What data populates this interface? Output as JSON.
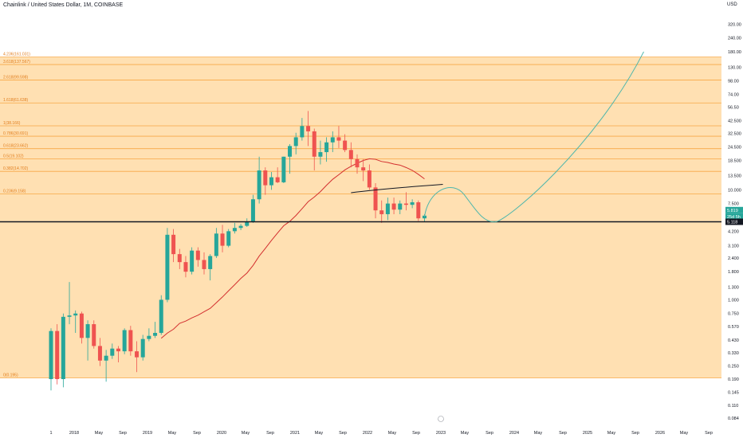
{
  "header": {
    "title": "Chainlink / United States Dollar, 1M, COINBASE",
    "currency": "USD"
  },
  "colors": {
    "fib_zone": "#ffe0b2",
    "fib_line": "#f7a745",
    "fib_label": "#e07b1a",
    "up_candle": "#26a69a",
    "down_candle": "#ef5350",
    "ma_line": "#d32f2f",
    "trend_line": "#131722",
    "projection": "#4db6ac",
    "support": "#131722"
  },
  "price_tags": [
    {
      "label": "5.819",
      "bg": "#26a69a"
    },
    {
      "label": "25d 5h",
      "bg": "#26a69a"
    },
    {
      "label": "5.118",
      "bg": "#131722"
    }
  ],
  "chart_data": {
    "type": "candlestick",
    "log_scale": true,
    "ylim": [
      0.084,
      450
    ],
    "y_ticks": [
      "320.00",
      "240.00",
      "180.00",
      "130.00",
      "98.00",
      "74.00",
      "56.50",
      "42.500",
      "32.500",
      "24.500",
      "18.500",
      "13.500",
      "10.000",
      "7.500",
      "5.600",
      "4.200",
      "3.100",
      "2.400",
      "1.800",
      "1.300",
      "1.000",
      "0.750",
      "0.570",
      "0.430",
      "0.330",
      "0.250",
      "0.190",
      "0.145",
      "0.110",
      "0.084"
    ],
    "x_ticks": [
      "1",
      "2018",
      "May",
      "Sep",
      "2019",
      "May",
      "Sep",
      "2020",
      "May",
      "Sep",
      "2021",
      "May",
      "Sep",
      "2022",
      "May",
      "Sep",
      "2023",
      "May",
      "Sep",
      "2024",
      "May",
      "Sep",
      "2025",
      "May",
      "Sep",
      "2026",
      "May",
      "Sep"
    ],
    "fib_levels": [
      {
        "label": "0(0.195)",
        "value": 0.195
      },
      {
        "label": "0.236(9.158)",
        "value": 9.158
      },
      {
        "label": "0.382(14.702)",
        "value": 14.702
      },
      {
        "label": "0.5(19.102)",
        "value": 19.102
      },
      {
        "label": "0.618(23.662)",
        "value": 23.662
      },
      {
        "label": "0.786(30.691)",
        "value": 30.691
      },
      {
        "label": "1(38.166)",
        "value": 38.166
      },
      {
        "label": "1.618(61.638)",
        "value": 61.638
      },
      {
        "label": "2.618(99.598)",
        "value": 99.598
      },
      {
        "label": "3.618(137.567)",
        "value": 137.567
      },
      {
        "label": "4.236(161.031)",
        "value": 161.031
      }
    ],
    "support_level": 5.118,
    "candles": [
      {
        "o": 0.19,
        "h": 0.55,
        "l": 0.15,
        "c": 0.52
      },
      {
        "o": 0.52,
        "h": 0.6,
        "l": 0.17,
        "c": 0.19
      },
      {
        "o": 0.19,
        "h": 0.75,
        "l": 0.16,
        "c": 0.7
      },
      {
        "o": 0.7,
        "h": 1.45,
        "l": 0.6,
        "c": 0.72
      },
      {
        "o": 0.72,
        "h": 0.8,
        "l": 0.5,
        "c": 0.75
      },
      {
        "o": 0.75,
        "h": 0.78,
        "l": 0.4,
        "c": 0.45
      },
      {
        "o": 0.45,
        "h": 0.65,
        "l": 0.28,
        "c": 0.6
      },
      {
        "o": 0.6,
        "h": 0.65,
        "l": 0.36,
        "c": 0.38
      },
      {
        "o": 0.38,
        "h": 0.45,
        "l": 0.25,
        "c": 0.28
      },
      {
        "o": 0.28,
        "h": 0.35,
        "l": 0.18,
        "c": 0.31
      },
      {
        "o": 0.31,
        "h": 0.4,
        "l": 0.29,
        "c": 0.36
      },
      {
        "o": 0.36,
        "h": 0.38,
        "l": 0.27,
        "c": 0.34
      },
      {
        "o": 0.34,
        "h": 0.55,
        "l": 0.32,
        "c": 0.53
      },
      {
        "o": 0.53,
        "h": 0.58,
        "l": 0.31,
        "c": 0.34
      },
      {
        "o": 0.34,
        "h": 0.42,
        "l": 0.22,
        "c": 0.3
      },
      {
        "o": 0.3,
        "h": 0.48,
        "l": 0.28,
        "c": 0.44
      },
      {
        "o": 0.44,
        "h": 0.55,
        "l": 0.42,
        "c": 0.47
      },
      {
        "o": 0.47,
        "h": 0.63,
        "l": 0.45,
        "c": 0.5
      },
      {
        "o": 0.5,
        "h": 1.1,
        "l": 0.48,
        "c": 1.0
      },
      {
        "o": 1.0,
        "h": 4.5,
        "l": 0.95,
        "c": 3.9
      },
      {
        "o": 3.9,
        "h": 4.4,
        "l": 2.2,
        "c": 2.6
      },
      {
        "o": 2.6,
        "h": 2.9,
        "l": 1.9,
        "c": 2.2
      },
      {
        "o": 2.2,
        "h": 2.5,
        "l": 1.6,
        "c": 1.8
      },
      {
        "o": 1.8,
        "h": 3.0,
        "l": 1.7,
        "c": 2.8
      },
      {
        "o": 2.8,
        "h": 3.0,
        "l": 2.0,
        "c": 2.3
      },
      {
        "o": 2.3,
        "h": 2.7,
        "l": 1.7,
        "c": 1.9
      },
      {
        "o": 1.9,
        "h": 2.6,
        "l": 1.5,
        "c": 2.5
      },
      {
        "o": 2.5,
        "h": 4.5,
        "l": 2.4,
        "c": 4.0
      },
      {
        "o": 4.0,
        "h": 4.8,
        "l": 2.7,
        "c": 3.1
      },
      {
        "o": 3.1,
        "h": 4.4,
        "l": 3.0,
        "c": 4.2
      },
      {
        "o": 4.2,
        "h": 5.0,
        "l": 4.0,
        "c": 4.5
      },
      {
        "o": 4.5,
        "h": 4.9,
        "l": 4.3,
        "c": 4.7
      },
      {
        "o": 4.7,
        "h": 5.5,
        "l": 4.6,
        "c": 5.1
      },
      {
        "o": 5.1,
        "h": 9.0,
        "l": 5.0,
        "c": 8.2
      },
      {
        "o": 8.2,
        "h": 20.0,
        "l": 7.5,
        "c": 15.0
      },
      {
        "o": 15.0,
        "h": 16.0,
        "l": 9.0,
        "c": 11.0
      },
      {
        "o": 11.0,
        "h": 14.5,
        "l": 10.0,
        "c": 13.0
      },
      {
        "o": 13.0,
        "h": 16.0,
        "l": 11.5,
        "c": 11.7
      },
      {
        "o": 11.7,
        "h": 20.0,
        "l": 11.5,
        "c": 20.0
      },
      {
        "o": 20.0,
        "h": 26.0,
        "l": 14.0,
        "c": 25.0
      },
      {
        "o": 25.0,
        "h": 33.0,
        "l": 21.0,
        "c": 30.0
      },
      {
        "o": 30.0,
        "h": 45.0,
        "l": 28.0,
        "c": 38.0
      },
      {
        "o": 38.0,
        "h": 52.0,
        "l": 25.0,
        "c": 34.0
      },
      {
        "o": 34.0,
        "h": 36.0,
        "l": 15.0,
        "c": 20.0
      },
      {
        "o": 20.0,
        "h": 28.0,
        "l": 17.0,
        "c": 22.0
      },
      {
        "o": 22.0,
        "h": 30.0,
        "l": 18.0,
        "c": 27.0
      },
      {
        "o": 27.0,
        "h": 34.0,
        "l": 22.0,
        "c": 30.0
      },
      {
        "o": 30.0,
        "h": 38.0,
        "l": 24.0,
        "c": 28.0
      },
      {
        "o": 28.0,
        "h": 32.0,
        "l": 22.0,
        "c": 23.0
      },
      {
        "o": 23.0,
        "h": 27.0,
        "l": 16.0,
        "c": 19.0
      },
      {
        "o": 19.0,
        "h": 21.0,
        "l": 14.0,
        "c": 16.0
      },
      {
        "o": 16.0,
        "h": 19.0,
        "l": 12.0,
        "c": 15.0
      },
      {
        "o": 15.0,
        "h": 17.0,
        "l": 10.0,
        "c": 10.5
      },
      {
        "o": 10.5,
        "h": 11.5,
        "l": 5.5,
        "c": 6.5
      },
      {
        "o": 6.5,
        "h": 8.0,
        "l": 5.0,
        "c": 6.0
      },
      {
        "o": 6.0,
        "h": 8.5,
        "l": 5.3,
        "c": 7.5
      },
      {
        "o": 7.5,
        "h": 8.5,
        "l": 6.0,
        "c": 6.6
      },
      {
        "o": 6.6,
        "h": 8.0,
        "l": 6.0,
        "c": 7.5
      },
      {
        "o": 7.5,
        "h": 9.5,
        "l": 6.5,
        "c": 7.3
      },
      {
        "o": 7.3,
        "h": 8.2,
        "l": 6.8,
        "c": 7.7
      },
      {
        "o": 7.7,
        "h": 8.0,
        "l": 5.2,
        "c": 5.5
      },
      {
        "o": 5.5,
        "h": 6.0,
        "l": 5.1,
        "c": 5.82
      }
    ]
  }
}
